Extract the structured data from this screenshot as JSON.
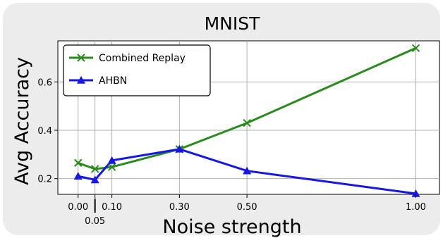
{
  "chart_data": {
    "type": "line",
    "title": "MNIST",
    "xlabel": "Noise strength",
    "ylabel": "Avg Accuracy",
    "x": [
      0.0,
      0.05,
      0.1,
      0.3,
      0.5,
      1.0
    ],
    "x_tick_labels": [
      "0.00",
      "0.05",
      "0.10",
      "0.30",
      "0.50",
      "1.00"
    ],
    "y_ticks": [
      0.2,
      0.4,
      0.6
    ],
    "y_tick_labels": [
      "0.2",
      "0.4",
      "0.6"
    ],
    "xlim": [
      -0.06,
      1.07
    ],
    "ylim": [
      0.135,
      0.77
    ],
    "grid": true,
    "legend_position": "top-left",
    "series": [
      {
        "name": "Combined Replay",
        "values": [
          0.265,
          0.24,
          0.248,
          0.322,
          0.43,
          0.74
        ],
        "color": "#2a8a1e",
        "marker": "x"
      },
      {
        "name": "AHBN",
        "values": [
          0.21,
          0.195,
          0.275,
          0.322,
          0.232,
          0.138
        ],
        "color": "#1616e6",
        "marker": "triangle"
      }
    ]
  }
}
